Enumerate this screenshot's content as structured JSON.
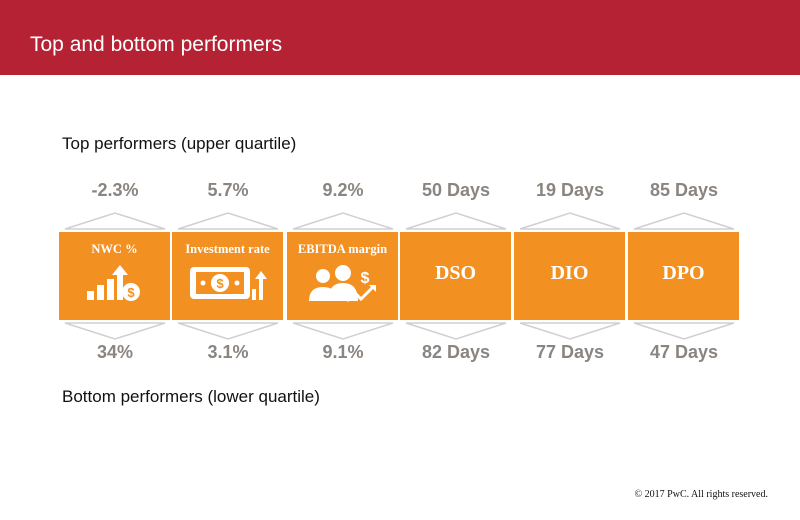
{
  "header": {
    "title": "Top and bottom performers"
  },
  "top_label": "Top performers (upper quartile)",
  "bottom_label": "Bottom performers (lower quartile)",
  "metrics": [
    {
      "name": "NWC %",
      "top": "-2.3%",
      "bottom": "34%",
      "icon": "chart-coin-icon"
    },
    {
      "name": "Investment rate",
      "top": "5.7%",
      "bottom": "3.1%",
      "icon": "banknote-growth-icon"
    },
    {
      "name": "EBITDA margin",
      "top": "9.2%",
      "bottom": "9.1%",
      "icon": "people-profit-icon"
    },
    {
      "name": "DSO",
      "top": "50 Days",
      "bottom": "82 Days"
    },
    {
      "name": "DIO",
      "top": "19 Days",
      "bottom": "77 Days"
    },
    {
      "name": "DPO",
      "top": "85 Days",
      "bottom": "47 Days"
    }
  ],
  "footer": "© 2017 PwC. All rights reserved.",
  "colors": {
    "header": "#b52234",
    "box": "#f39022",
    "value": "#8a8580"
  }
}
